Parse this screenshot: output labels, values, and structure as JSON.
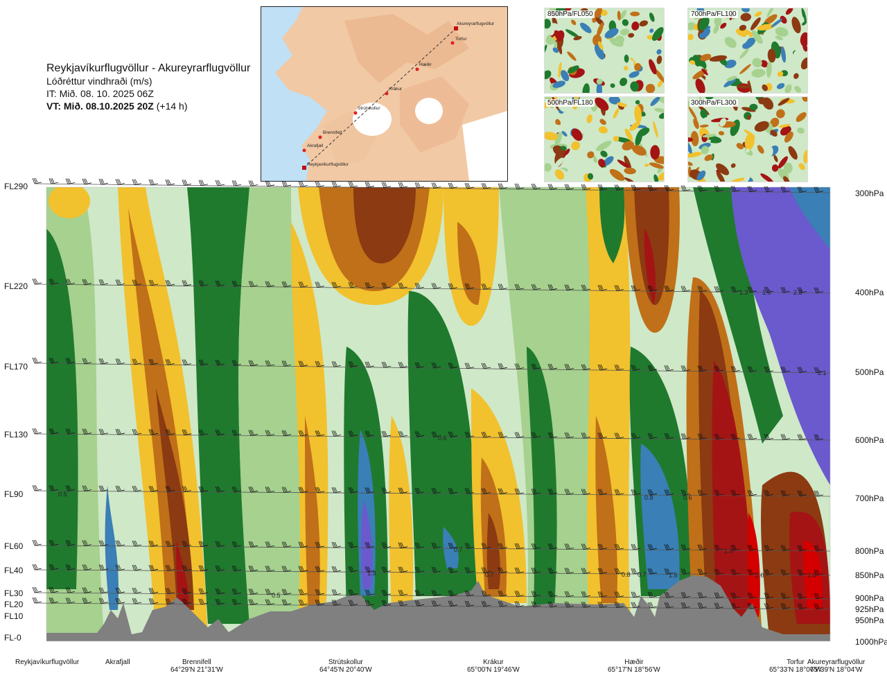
{
  "header": {
    "route": "Reykjavíkurflugvöllur - Akureyrarflugvöllur",
    "variable": "Lóðréttur vindhraði (m/s)",
    "init_time": "IT: Mið. 08. 10. 2025 06Z",
    "valid_time": "VT: Mið. 08.10.2025 20Z",
    "lead": "(+14 h)"
  },
  "map": {
    "places": [
      "Akureyrarflugvöllur",
      "Torfur",
      "Hæðir",
      "Krákur",
      "Strútskollur",
      "Brennifell",
      "Akrafjall",
      "Reykjavíkurflugvöllur"
    ]
  },
  "panels": [
    {
      "label": "850hPa/FL050"
    },
    {
      "label": "700hPa/FL100"
    },
    {
      "label": "500hPa/FL180"
    },
    {
      "label": "300hPa/FL300"
    }
  ],
  "flight_levels": [
    "FL290",
    "FL220",
    "FL170",
    "FL130",
    "FL90",
    "FL60",
    "FL40",
    "FL30",
    "FL20",
    "FL10",
    "FL-0"
  ],
  "pressure_levels": [
    "300hPa",
    "400hPa",
    "500hPa",
    "600hPa",
    "700hPa",
    "800hPa",
    "850hPa",
    "900hPa",
    "925hPa",
    "950hPa",
    "1000hPa"
  ],
  "locations": [
    {
      "name": "Reykjavíkurflugvöllur",
      "coord": ""
    },
    {
      "name": "Akrafjall",
      "coord": ""
    },
    {
      "name": "Brennifell",
      "coord": "64°29'N 21°31'W"
    },
    {
      "name": "Strútskollur",
      "coord": "64°45'N 20°40'W"
    },
    {
      "name": "Krákur",
      "coord": "65°00'N 19°46'W"
    },
    {
      "name": "Hæðir",
      "coord": "65°17'N 18°56'W"
    },
    {
      "name": "Torfur",
      "coord": "65°33'N 18°07'W"
    },
    {
      "name": "Akureyrarflugvöllur",
      "coord": "65°39'N 18°04'W"
    }
  ],
  "chart_data": {
    "type": "heatmap",
    "variable": "Lóðréttur vindhraði (m/s)",
    "x_labels": [
      "Reykjavíkurflugvöllur",
      "Akrafjall",
      "Brennifell",
      "Strútskollur",
      "Krákur",
      "Hæðir",
      "Torfur",
      "Akureyrarflugvöllur"
    ],
    "y_levels_hPa": [
      300,
      400,
      500,
      600,
      700,
      800,
      850,
      900,
      925,
      950,
      1000
    ],
    "contour_labels": [
      {
        "value": "1.3"
      },
      {
        "value": "1.6"
      },
      {
        "value": "2.3"
      },
      {
        "value": "2.1"
      },
      {
        "value": "0.6"
      },
      {
        "value": "0.5"
      },
      {
        "value": "0.8"
      },
      {
        "value": "0.6"
      },
      {
        "value": "0.7"
      },
      {
        "value": "1.9"
      },
      {
        "value": "1.3"
      },
      {
        "value": "0.7"
      },
      {
        "value": "0.8"
      },
      {
        "value": "0.7"
      },
      {
        "value": "1.5"
      },
      {
        "value": "2.0"
      },
      {
        "value": "2.6"
      },
      {
        "value": "0.5"
      }
    ],
    "colors": {
      "strong_down": "#6a5acd",
      "down": "#1f7a2e",
      "weak_down": "#cfe8c8",
      "neutral": "#f7f0b0",
      "weak_up": "#f2c12e",
      "up": "#c07018",
      "strong_up": "#8b3a12",
      "very_strong_up": "#a41414",
      "terrain": "#808080"
    }
  }
}
